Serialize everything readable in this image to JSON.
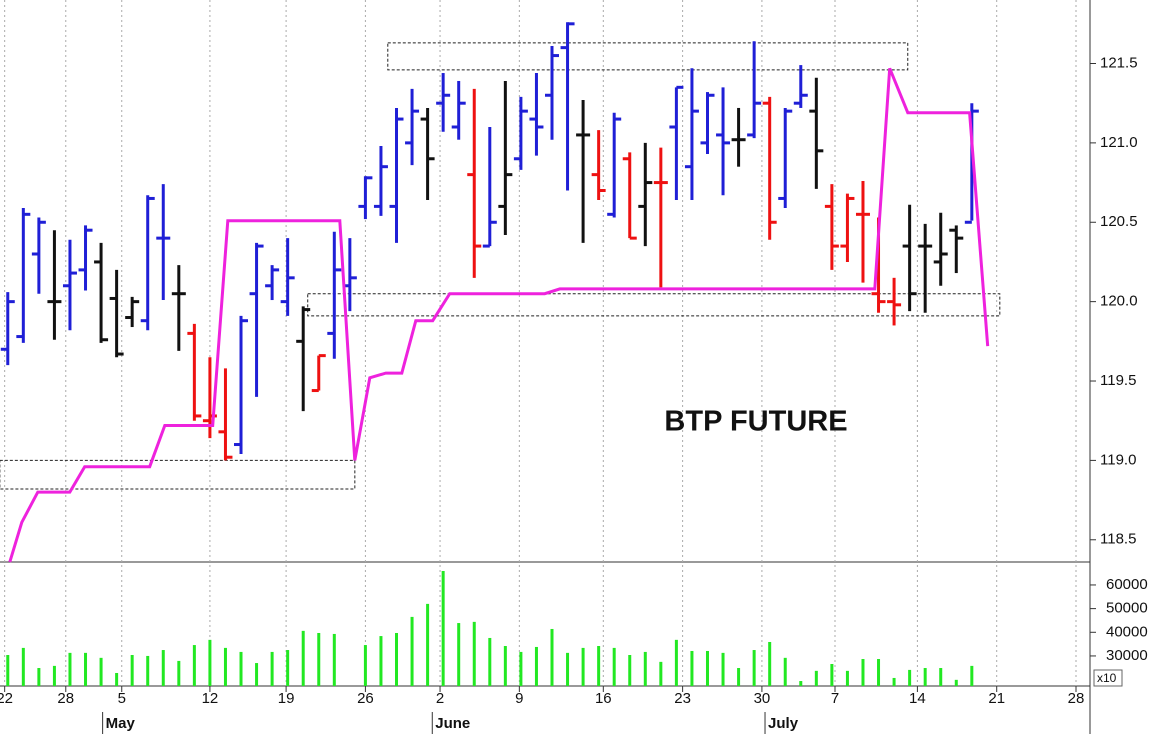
{
  "chart_data": [
    {
      "type": "ohlc",
      "title": "BTP FUTURE",
      "x": [
        0,
        1,
        2,
        3,
        4,
        5,
        6,
        7,
        8,
        9,
        10,
        11,
        12,
        13,
        14,
        15,
        16,
        17,
        18,
        19,
        20,
        21,
        22,
        23,
        24,
        25,
        26,
        27,
        28,
        29,
        30,
        31,
        32,
        33,
        34,
        35,
        36,
        37,
        38,
        39,
        40,
        41,
        42,
        43,
        44,
        45,
        46,
        47,
        48,
        49,
        50,
        51,
        52,
        53,
        54,
        55,
        56,
        57,
        58,
        59,
        60,
        61,
        62
      ],
      "open": [
        119.7,
        119.78,
        120.3,
        120.0,
        120.1,
        120.2,
        120.25,
        120.02,
        119.9,
        119.88,
        120.4,
        120.05,
        119.8,
        119.25,
        119.18,
        119.1,
        120.05,
        120.1,
        120.0,
        119.75,
        119.44,
        119.8,
        120.1,
        120.6,
        120.6,
        120.6,
        121.0,
        121.15,
        121.25,
        121.1,
        120.8,
        120.35,
        120.6,
        120.9,
        121.15,
        121.3,
        121.6,
        121.05,
        120.8,
        120.55,
        120.9,
        120.6,
        120.75,
        121.1,
        120.85,
        121.0,
        121.05,
        121.02,
        121.05,
        121.25,
        120.65,
        121.25,
        121.2,
        120.6,
        120.35,
        120.55,
        120.05,
        120.0,
        120.35,
        120.35,
        120.25,
        120.45,
        120.5
      ],
      "high": [
        120.06,
        120.59,
        120.53,
        120.45,
        120.39,
        120.48,
        120.37,
        120.2,
        120.03,
        120.67,
        120.74,
        120.23,
        119.86,
        119.65,
        119.58,
        119.91,
        120.37,
        120.23,
        120.4,
        119.97,
        119.66,
        120.44,
        120.4,
        120.79,
        120.98,
        121.22,
        121.34,
        121.22,
        121.44,
        121.39,
        121.34,
        121.1,
        121.39,
        121.29,
        121.44,
        121.61,
        121.76,
        121.27,
        121.08,
        121.19,
        120.94,
        121.0,
        120.97,
        121.35,
        121.47,
        121.32,
        121.35,
        121.22,
        121.64,
        121.29,
        121.22,
        121.49,
        121.41,
        120.74,
        120.68,
        120.76,
        120.53,
        120.15,
        120.61,
        120.49,
        120.56,
        120.48,
        121.25
      ],
      "low": [
        119.6,
        119.74,
        120.05,
        119.76,
        119.82,
        120.07,
        119.74,
        119.65,
        119.84,
        119.82,
        120.01,
        119.69,
        119.25,
        119.14,
        119.0,
        119.04,
        119.4,
        120.01,
        119.91,
        119.31,
        119.44,
        119.64,
        119.94,
        120.52,
        120.54,
        120.37,
        120.86,
        120.64,
        121.07,
        121.02,
        120.15,
        120.35,
        120.42,
        120.83,
        120.92,
        121.02,
        120.7,
        120.37,
        120.64,
        120.53,
        120.4,
        120.35,
        120.09,
        120.64,
        120.64,
        120.93,
        120.67,
        120.85,
        121.03,
        120.39,
        120.59,
        121.22,
        120.71,
        120.2,
        120.25,
        120.12,
        119.93,
        119.85,
        119.94,
        119.93,
        120.1,
        120.18,
        120.51
      ],
      "close": [
        120.0,
        120.55,
        120.5,
        120.0,
        120.18,
        120.45,
        119.76,
        119.67,
        120.0,
        120.65,
        120.4,
        120.05,
        119.28,
        119.28,
        119.02,
        119.88,
        120.35,
        120.2,
        120.15,
        119.95,
        119.66,
        120.2,
        120.15,
        120.78,
        120.85,
        121.15,
        121.2,
        120.9,
        121.3,
        121.25,
        120.35,
        120.5,
        120.8,
        121.2,
        121.1,
        121.55,
        121.75,
        121.05,
        120.7,
        121.15,
        120.4,
        120.75,
        120.75,
        121.35,
        121.2,
        121.3,
        121.0,
        121.02,
        121.25,
        120.5,
        121.2,
        121.3,
        120.95,
        120.35,
        120.65,
        120.55,
        120.0,
        119.98,
        120.05,
        120.35,
        120.3,
        120.4,
        121.2
      ],
      "palette": [
        "#1f1fd6",
        "#ee1111",
        "#111111"
      ],
      "color_index": [
        0,
        0,
        0,
        2,
        0,
        0,
        2,
        2,
        2,
        0,
        0,
        2,
        1,
        1,
        1,
        0,
        0,
        0,
        0,
        2,
        1,
        0,
        0,
        0,
        0,
        0,
        0,
        2,
        0,
        0,
        1,
        0,
        2,
        0,
        0,
        0,
        0,
        2,
        1,
        0,
        1,
        2,
        1,
        0,
        0,
        0,
        0,
        2,
        0,
        1,
        0,
        0,
        2,
        1,
        1,
        1,
        1,
        1,
        2,
        2,
        2,
        2,
        0
      ],
      "line": {
        "color": "#ee22dd",
        "x": [
          0.13,
          0.9,
          1.93,
          3.99,
          4.95,
          9.13,
          10.1,
          13.18,
          14.15,
          21.35,
          22.32,
          23.28,
          24.31,
          25.34,
          26.24,
          27.33,
          28.42,
          34.53,
          35.5,
          55.76,
          56.72,
          57.88,
          61.86,
          63.02
        ],
        "values": [
          118.36,
          118.61,
          118.8,
          118.8,
          118.96,
          118.96,
          119.22,
          119.22,
          120.51,
          120.51,
          119.0,
          119.52,
          119.55,
          119.55,
          119.88,
          119.88,
          120.05,
          120.05,
          120.08,
          120.08,
          121.47,
          121.19,
          121.19,
          119.72
        ]
      },
      "boxes": [
        {
          "x": [
            24.44,
            57.88
          ],
          "y": [
            121.63,
            121.46
          ]
        },
        {
          "x": [
            -0.51,
            22.32
          ],
          "y": [
            119.0,
            118.82
          ]
        },
        {
          "x": [
            19.29,
            63.8
          ],
          "y": [
            120.05,
            119.91
          ]
        }
      ],
      "xlim": [
        -0.5,
        69.6
      ],
      "ylim": [
        118.36,
        121.9
      ],
      "yticks": [
        121.5,
        {
          "value": 121,
          "label": "121.0"
        },
        120.5,
        {
          "value": 120,
          "label": "120.0"
        },
        119.5,
        {
          "value": 119,
          "label": "119.0"
        },
        118.5
      ]
    },
    {
      "type": "volume",
      "color": "#22e822",
      "values": [
        30400,
        33400,
        24900,
        25800,
        31300,
        31300,
        29200,
        22800,
        30400,
        30000,
        32500,
        27900,
        34600,
        36800,
        33400,
        31700,
        27000,
        31700,
        32500,
        40600,
        39700,
        39300,
        null,
        34600,
        38400,
        39700,
        46500,
        52000,
        65900,
        43900,
        44400,
        37600,
        34200,
        31700,
        33800,
        41400,
        31300,
        33400,
        34200,
        33400,
        30400,
        31700,
        27500,
        36800,
        32100,
        32100,
        31300,
        24900,
        32500,
        35900,
        29200,
        19400,
        23700,
        26600,
        23700,
        28700,
        28700,
        20700,
        24100,
        24900,
        24900,
        19900,
        25800
      ],
      "scale_label": "x10",
      "xlim": [
        -0.5,
        69.6
      ],
      "ylim": [
        17300,
        69700
      ],
      "yticks": [
        30000,
        40000,
        50000,
        60000
      ],
      "xticks": [
        {
          "value": -0.2,
          "label": "22"
        },
        {
          "value": 3.73,
          "label": "28"
        },
        {
          "value": 7.33,
          "label": "5"
        },
        {
          "value": 13.0,
          "label": "12"
        },
        {
          "value": 17.9,
          "label": "19"
        },
        {
          "value": 23.0,
          "label": "26"
        },
        {
          "value": 27.8,
          "label": "2"
        },
        {
          "value": 32.9,
          "label": "9"
        },
        {
          "value": 38.3,
          "label": "16"
        },
        {
          "value": 43.4,
          "label": "23"
        },
        {
          "value": 48.5,
          "label": "30"
        },
        {
          "value": 53.2,
          "label": "7"
        },
        {
          "value": 58.5,
          "label": "14"
        },
        {
          "value": 63.6,
          "label": "21"
        },
        {
          "value": 68.7,
          "label": "28"
        }
      ],
      "month_ticks": [
        {
          "value": 6.1,
          "label": "May"
        },
        {
          "value": 27.3,
          "label": "June"
        },
        {
          "value": 48.7,
          "label": "July"
        }
      ],
      "grid": true
    }
  ]
}
